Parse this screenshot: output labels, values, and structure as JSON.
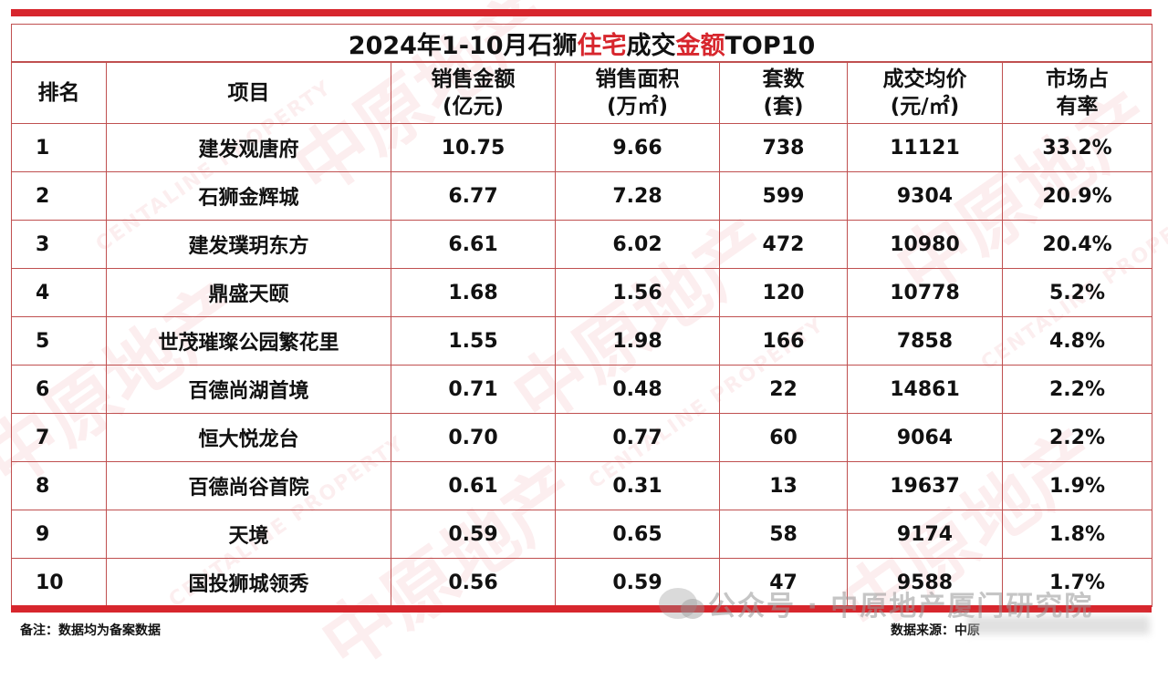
{
  "table": {
    "title_prefix": "2024年1-10月石狮",
    "title_red1": "住宅",
    "title_mid": "成交",
    "title_red2": "金额",
    "title_suffix": "TOP10",
    "headers": [
      {
        "line1": "排名",
        "line2": ""
      },
      {
        "line1": "项目",
        "line2": ""
      },
      {
        "line1": "销售金额",
        "line2": "(亿元)"
      },
      {
        "line1": "销售面积",
        "line2": "(万㎡)"
      },
      {
        "line1": "套数",
        "line2": "(套)"
      },
      {
        "line1": "成交均价",
        "line2": "(元/㎡)"
      },
      {
        "line1": "市场占",
        "line2": "有率"
      }
    ],
    "rows": [
      {
        "rank": "1",
        "project": "建发观唐府",
        "amount": "10.75",
        "area": "9.66",
        "units": "738",
        "price": "11121",
        "share": "33.2%"
      },
      {
        "rank": "2",
        "project": "石狮金辉城",
        "amount": "6.77",
        "area": "7.28",
        "units": "599",
        "price": "9304",
        "share": "20.9%"
      },
      {
        "rank": "3",
        "project": "建发璞玥东方",
        "amount": "6.61",
        "area": "6.02",
        "units": "472",
        "price": "10980",
        "share": "20.4%"
      },
      {
        "rank": "4",
        "project": "鼎盛天颐",
        "amount": "1.68",
        "area": "1.56",
        "units": "120",
        "price": "10778",
        "share": "5.2%"
      },
      {
        "rank": "5",
        "project": "世茂璀璨公园繁花里",
        "amount": "1.55",
        "area": "1.98",
        "units": "166",
        "price": "7858",
        "share": "4.8%"
      },
      {
        "rank": "6",
        "project": "百德尚湖首境",
        "amount": "0.71",
        "area": "0.48",
        "units": "22",
        "price": "14861",
        "share": "2.2%"
      },
      {
        "rank": "7",
        "project": "恒大悦龙台",
        "amount": "0.70",
        "area": "0.77",
        "units": "60",
        "price": "9064",
        "share": "2.2%"
      },
      {
        "rank": "8",
        "project": "百德尚谷首院",
        "amount": "0.61",
        "area": "0.31",
        "units": "13",
        "price": "19637",
        "share": "1.9%"
      },
      {
        "rank": "9",
        "project": "天境",
        "amount": "0.59",
        "area": "0.65",
        "units": "58",
        "price": "9174",
        "share": "1.8%"
      },
      {
        "rank": "10",
        "project": "国投狮城领秀",
        "amount": "0.56",
        "area": "0.59",
        "units": "47",
        "price": "9588",
        "share": "1.7%"
      }
    ]
  },
  "footer": {
    "note": "备注：数据均为备案数据",
    "source": "数据来源：中原"
  },
  "watermark": {
    "text": "中原地产",
    "subtext": "CENTALINE PROPERTY",
    "wechat": "公众号 · 中原地产厦门研究院"
  },
  "colors": {
    "accent": "#d7262d"
  }
}
